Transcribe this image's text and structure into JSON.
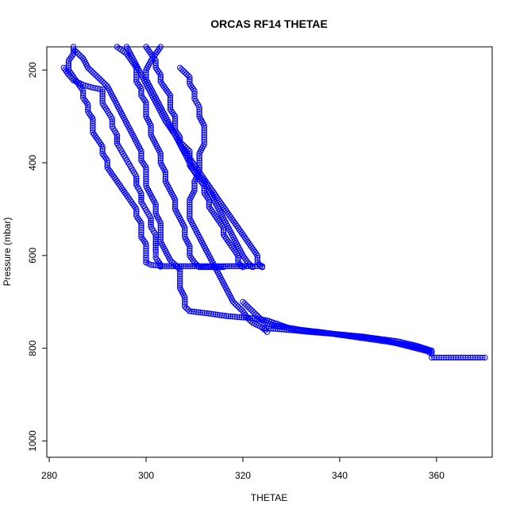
{
  "chart_data": {
    "type": "scatter",
    "title": "ORCAS RF14 THETAE",
    "xlabel": "THETAE",
    "ylabel": "Pressure (mbar)",
    "xlim": [
      279.5,
      371.5
    ],
    "ylim": [
      1035,
      150
    ],
    "y_reversed": true,
    "grid": false,
    "legend": "none",
    "x_ticks": [
      280,
      300,
      320,
      340,
      360
    ],
    "y_ticks": [
      200,
      400,
      600,
      800,
      1000
    ],
    "color": "#0000ff",
    "series": [
      {
        "points": [
          [
            285,
            150
          ],
          [
            285,
            165
          ],
          [
            284,
            180
          ],
          [
            284,
            200
          ],
          [
            285,
            215
          ],
          [
            286,
            230
          ],
          [
            287,
            245
          ],
          [
            287,
            260
          ],
          [
            288,
            275
          ],
          [
            288,
            290
          ],
          [
            289,
            305
          ],
          [
            289,
            320
          ],
          [
            289,
            335
          ],
          [
            290,
            350
          ],
          [
            291,
            365
          ],
          [
            291,
            380
          ],
          [
            292,
            395
          ],
          [
            292,
            410
          ],
          [
            293,
            425
          ],
          [
            294,
            440
          ],
          [
            295,
            455
          ],
          [
            296,
            470
          ],
          [
            297,
            485
          ],
          [
            298,
            500
          ],
          [
            298,
            515
          ],
          [
            299,
            530
          ],
          [
            299,
            545
          ],
          [
            299,
            560
          ],
          [
            300,
            575
          ],
          [
            300,
            590
          ],
          [
            300,
            605
          ],
          [
            300,
            615
          ]
        ]
      },
      {
        "points": [
          [
            283,
            195
          ],
          [
            284,
            210
          ],
          [
            285,
            222
          ],
          [
            287,
            232
          ],
          [
            289,
            238
          ],
          [
            291,
            242
          ],
          [
            291,
            256
          ],
          [
            291,
            272
          ],
          [
            292,
            288
          ],
          [
            293,
            305
          ],
          [
            293,
            322
          ],
          [
            294,
            340
          ],
          [
            294,
            358
          ],
          [
            295,
            376
          ],
          [
            296,
            394
          ],
          [
            297,
            412
          ],
          [
            298,
            430
          ],
          [
            298,
            448
          ],
          [
            299,
            466
          ],
          [
            299,
            484
          ],
          [
            300,
            502
          ],
          [
            301,
            520
          ],
          [
            301,
            538
          ],
          [
            302,
            556
          ],
          [
            302,
            574
          ],
          [
            302,
            592
          ],
          [
            302,
            605
          ],
          [
            303,
            620
          ],
          [
            303,
            624
          ]
        ]
      },
      {
        "points": [
          [
            285,
            155
          ],
          [
            287,
            175
          ],
          [
            288,
            195
          ],
          [
            290,
            215
          ],
          [
            292,
            235
          ],
          [
            293,
            255
          ],
          [
            294,
            275
          ],
          [
            295,
            295
          ],
          [
            296,
            315
          ],
          [
            297,
            335
          ],
          [
            298,
            355
          ],
          [
            299,
            375
          ],
          [
            299,
            395
          ],
          [
            300,
            410
          ],
          [
            300,
            430
          ],
          [
            300,
            450
          ],
          [
            301,
            470
          ],
          [
            302,
            490
          ],
          [
            302,
            510
          ],
          [
            303,
            530
          ],
          [
            303,
            550
          ],
          [
            303,
            570
          ],
          [
            304,
            590
          ],
          [
            305,
            610
          ],
          [
            307,
            630
          ],
          [
            307,
            650
          ],
          [
            307,
            670
          ],
          [
            308,
            690
          ],
          [
            308,
            710
          ],
          [
            309,
            720
          ],
          [
            313,
            725
          ],
          [
            317,
            731
          ],
          [
            322,
            735
          ],
          [
            325,
            740
          ],
          [
            330,
            758
          ],
          [
            336,
            765
          ],
          [
            341,
            772
          ],
          [
            347,
            778
          ],
          [
            352,
            785
          ],
          [
            356,
            795
          ],
          [
            359,
            805
          ]
        ]
      },
      {
        "points": [
          [
            294,
            150
          ],
          [
            296,
            165
          ],
          [
            297,
            180
          ],
          [
            298,
            195
          ],
          [
            298,
            210
          ],
          [
            298,
            225
          ],
          [
            299,
            240
          ],
          [
            299,
            255
          ],
          [
            300,
            270
          ],
          [
            300,
            285
          ],
          [
            300,
            300
          ],
          [
            301,
            320
          ],
          [
            301,
            340
          ],
          [
            302,
            360
          ],
          [
            303,
            380
          ],
          [
            303,
            400
          ],
          [
            304,
            420
          ],
          [
            304,
            440
          ],
          [
            305,
            460
          ],
          [
            306,
            480
          ],
          [
            306,
            500
          ],
          [
            307,
            520
          ],
          [
            308,
            540
          ],
          [
            308,
            560
          ],
          [
            309,
            580
          ],
          [
            309,
            600
          ],
          [
            310,
            615
          ],
          [
            311,
            625
          ],
          [
            313,
            625
          ],
          [
            316,
            625
          ]
        ]
      },
      {
        "points": [
          [
            296,
            150
          ],
          [
            297,
            170
          ],
          [
            298,
            190
          ],
          [
            299,
            210
          ],
          [
            300,
            230
          ],
          [
            301,
            250
          ],
          [
            302,
            270
          ],
          [
            303,
            290
          ],
          [
            304,
            310
          ],
          [
            305,
            325
          ],
          [
            306,
            340
          ],
          [
            307,
            355
          ],
          [
            308,
            365
          ],
          [
            309,
            375
          ],
          [
            309,
            390
          ],
          [
            310,
            405
          ],
          [
            311,
            420
          ],
          [
            312,
            435
          ],
          [
            313,
            450
          ],
          [
            314,
            465
          ],
          [
            315,
            480
          ],
          [
            316,
            495
          ],
          [
            317,
            510
          ],
          [
            318,
            525
          ],
          [
            319,
            540
          ],
          [
            320,
            555
          ],
          [
            321,
            570
          ],
          [
            322,
            585
          ],
          [
            323,
            600
          ],
          [
            323,
            615
          ],
          [
            324,
            625
          ]
        ]
      },
      {
        "points": [
          [
            300,
            150
          ],
          [
            301,
            165
          ],
          [
            302,
            180
          ],
          [
            302,
            195
          ],
          [
            303,
            210
          ],
          [
            303,
            225
          ],
          [
            304,
            240
          ],
          [
            305,
            255
          ],
          [
            305,
            270
          ],
          [
            305,
            285
          ],
          [
            306,
            300
          ],
          [
            306,
            315
          ],
          [
            306,
            330
          ],
          [
            307,
            345
          ],
          [
            307,
            360
          ],
          [
            308,
            375
          ],
          [
            309,
            390
          ],
          [
            309,
            405
          ],
          [
            310,
            420
          ],
          [
            311,
            435
          ],
          [
            312,
            450
          ],
          [
            312,
            465
          ],
          [
            313,
            480
          ],
          [
            313,
            495
          ],
          [
            314,
            510
          ],
          [
            315,
            525
          ],
          [
            316,
            540
          ],
          [
            316,
            555
          ],
          [
            317,
            570
          ],
          [
            318,
            585
          ],
          [
            319,
            600
          ],
          [
            319,
            615
          ],
          [
            320,
            625
          ]
        ]
      },
      {
        "points": [
          [
            303,
            150
          ],
          [
            302,
            165
          ],
          [
            301,
            180
          ],
          [
            300,
            200
          ],
          [
            300,
            220
          ],
          [
            301,
            240
          ],
          [
            302,
            260
          ],
          [
            303,
            280
          ],
          [
            304,
            300
          ],
          [
            305,
            320
          ],
          [
            306,
            340
          ],
          [
            307,
            360
          ],
          [
            308,
            380
          ],
          [
            309,
            400
          ],
          [
            310,
            420
          ],
          [
            312,
            440
          ],
          [
            313,
            460
          ],
          [
            314,
            480
          ],
          [
            315,
            500
          ],
          [
            316,
            520
          ],
          [
            317,
            540
          ],
          [
            318,
            560
          ],
          [
            319,
            580
          ],
          [
            320,
            600
          ],
          [
            321,
            615
          ],
          [
            322,
            625
          ]
        ]
      },
      {
        "points": [
          [
            307,
            195
          ],
          [
            308,
            205
          ],
          [
            309,
            215
          ],
          [
            309,
            230
          ],
          [
            310,
            245
          ],
          [
            310,
            262
          ],
          [
            311,
            280
          ],
          [
            311,
            300
          ],
          [
            312,
            320
          ],
          [
            312,
            340
          ],
          [
            312,
            360
          ],
          [
            311,
            380
          ],
          [
            311,
            400
          ],
          [
            311,
            420
          ],
          [
            310,
            440
          ],
          [
            310,
            460
          ],
          [
            309,
            480
          ],
          [
            309,
            500
          ],
          [
            309,
            520
          ],
          [
            310,
            540
          ],
          [
            311,
            560
          ],
          [
            312,
            580
          ],
          [
            313,
            600
          ],
          [
            314,
            620
          ],
          [
            315,
            640
          ],
          [
            316,
            660
          ],
          [
            317,
            680
          ],
          [
            318,
            700
          ],
          [
            320,
            720
          ],
          [
            321,
            735
          ],
          [
            322,
            745
          ],
          [
            324,
            755
          ],
          [
            325,
            765
          ]
        ]
      },
      {
        "points": [
          [
            320,
            700
          ],
          [
            322,
            720
          ],
          [
            324,
            740
          ],
          [
            326,
            750
          ],
          [
            329,
            755
          ],
          [
            333,
            762
          ],
          [
            338,
            768
          ],
          [
            342,
            774
          ],
          [
            346,
            780
          ],
          [
            350,
            786
          ],
          [
            354,
            793
          ],
          [
            357,
            800
          ],
          [
            359,
            808
          ]
        ]
      },
      {
        "points": [
          [
            324,
            756
          ],
          [
            329,
            760
          ],
          [
            334,
            765
          ],
          [
            340,
            770
          ],
          [
            345,
            775
          ],
          [
            349,
            782
          ],
          [
            352,
            790
          ],
          [
            355,
            798
          ],
          [
            358,
            806
          ],
          [
            359,
            812
          ]
        ]
      },
      {
        "points": [
          [
            359,
            820
          ],
          [
            360,
            820
          ],
          [
            361,
            820
          ],
          [
            362,
            820
          ],
          [
            363,
            820
          ],
          [
            364,
            820
          ],
          [
            365,
            820
          ],
          [
            366,
            820
          ],
          [
            367,
            820
          ],
          [
            368,
            820
          ],
          [
            369,
            820
          ],
          [
            370,
            820
          ]
        ]
      },
      {
        "points": [
          [
            300,
            615
          ],
          [
            301,
            620
          ],
          [
            302,
            621
          ],
          [
            303,
            622
          ],
          [
            303,
            623
          ],
          [
            313,
            623
          ],
          [
            314,
            623
          ],
          [
            315,
            623
          ],
          [
            316,
            623
          ],
          [
            322,
            623
          ],
          [
            323,
            623
          ],
          [
            324,
            623
          ]
        ]
      }
    ]
  }
}
